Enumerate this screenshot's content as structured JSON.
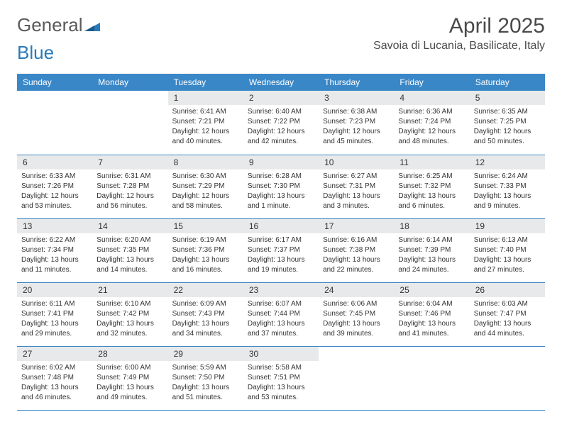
{
  "logo": {
    "text1": "General",
    "text2": "Blue"
  },
  "header": {
    "month_title": "April 2025",
    "location": "Savoia di Lucania, Basilicate, Italy"
  },
  "colors": {
    "header_bg": "#3a87c7",
    "day_num_bg": "#e8e9ea",
    "border": "#3a87c7",
    "text": "#333333",
    "logo_gray": "#5a5a5a",
    "logo_blue": "#2a7ab8"
  },
  "day_names": [
    "Sunday",
    "Monday",
    "Tuesday",
    "Wednesday",
    "Thursday",
    "Friday",
    "Saturday"
  ],
  "weeks": [
    [
      null,
      null,
      {
        "num": "1",
        "sunrise": "Sunrise: 6:41 AM",
        "sunset": "Sunset: 7:21 PM",
        "daylight": "Daylight: 12 hours and 40 minutes."
      },
      {
        "num": "2",
        "sunrise": "Sunrise: 6:40 AM",
        "sunset": "Sunset: 7:22 PM",
        "daylight": "Daylight: 12 hours and 42 minutes."
      },
      {
        "num": "3",
        "sunrise": "Sunrise: 6:38 AM",
        "sunset": "Sunset: 7:23 PM",
        "daylight": "Daylight: 12 hours and 45 minutes."
      },
      {
        "num": "4",
        "sunrise": "Sunrise: 6:36 AM",
        "sunset": "Sunset: 7:24 PM",
        "daylight": "Daylight: 12 hours and 48 minutes."
      },
      {
        "num": "5",
        "sunrise": "Sunrise: 6:35 AM",
        "sunset": "Sunset: 7:25 PM",
        "daylight": "Daylight: 12 hours and 50 minutes."
      }
    ],
    [
      {
        "num": "6",
        "sunrise": "Sunrise: 6:33 AM",
        "sunset": "Sunset: 7:26 PM",
        "daylight": "Daylight: 12 hours and 53 minutes."
      },
      {
        "num": "7",
        "sunrise": "Sunrise: 6:31 AM",
        "sunset": "Sunset: 7:28 PM",
        "daylight": "Daylight: 12 hours and 56 minutes."
      },
      {
        "num": "8",
        "sunrise": "Sunrise: 6:30 AM",
        "sunset": "Sunset: 7:29 PM",
        "daylight": "Daylight: 12 hours and 58 minutes."
      },
      {
        "num": "9",
        "sunrise": "Sunrise: 6:28 AM",
        "sunset": "Sunset: 7:30 PM",
        "daylight": "Daylight: 13 hours and 1 minute."
      },
      {
        "num": "10",
        "sunrise": "Sunrise: 6:27 AM",
        "sunset": "Sunset: 7:31 PM",
        "daylight": "Daylight: 13 hours and 3 minutes."
      },
      {
        "num": "11",
        "sunrise": "Sunrise: 6:25 AM",
        "sunset": "Sunset: 7:32 PM",
        "daylight": "Daylight: 13 hours and 6 minutes."
      },
      {
        "num": "12",
        "sunrise": "Sunrise: 6:24 AM",
        "sunset": "Sunset: 7:33 PM",
        "daylight": "Daylight: 13 hours and 9 minutes."
      }
    ],
    [
      {
        "num": "13",
        "sunrise": "Sunrise: 6:22 AM",
        "sunset": "Sunset: 7:34 PM",
        "daylight": "Daylight: 13 hours and 11 minutes."
      },
      {
        "num": "14",
        "sunrise": "Sunrise: 6:20 AM",
        "sunset": "Sunset: 7:35 PM",
        "daylight": "Daylight: 13 hours and 14 minutes."
      },
      {
        "num": "15",
        "sunrise": "Sunrise: 6:19 AM",
        "sunset": "Sunset: 7:36 PM",
        "daylight": "Daylight: 13 hours and 16 minutes."
      },
      {
        "num": "16",
        "sunrise": "Sunrise: 6:17 AM",
        "sunset": "Sunset: 7:37 PM",
        "daylight": "Daylight: 13 hours and 19 minutes."
      },
      {
        "num": "17",
        "sunrise": "Sunrise: 6:16 AM",
        "sunset": "Sunset: 7:38 PM",
        "daylight": "Daylight: 13 hours and 22 minutes."
      },
      {
        "num": "18",
        "sunrise": "Sunrise: 6:14 AM",
        "sunset": "Sunset: 7:39 PM",
        "daylight": "Daylight: 13 hours and 24 minutes."
      },
      {
        "num": "19",
        "sunrise": "Sunrise: 6:13 AM",
        "sunset": "Sunset: 7:40 PM",
        "daylight": "Daylight: 13 hours and 27 minutes."
      }
    ],
    [
      {
        "num": "20",
        "sunrise": "Sunrise: 6:11 AM",
        "sunset": "Sunset: 7:41 PM",
        "daylight": "Daylight: 13 hours and 29 minutes."
      },
      {
        "num": "21",
        "sunrise": "Sunrise: 6:10 AM",
        "sunset": "Sunset: 7:42 PM",
        "daylight": "Daylight: 13 hours and 32 minutes."
      },
      {
        "num": "22",
        "sunrise": "Sunrise: 6:09 AM",
        "sunset": "Sunset: 7:43 PM",
        "daylight": "Daylight: 13 hours and 34 minutes."
      },
      {
        "num": "23",
        "sunrise": "Sunrise: 6:07 AM",
        "sunset": "Sunset: 7:44 PM",
        "daylight": "Daylight: 13 hours and 37 minutes."
      },
      {
        "num": "24",
        "sunrise": "Sunrise: 6:06 AM",
        "sunset": "Sunset: 7:45 PM",
        "daylight": "Daylight: 13 hours and 39 minutes."
      },
      {
        "num": "25",
        "sunrise": "Sunrise: 6:04 AM",
        "sunset": "Sunset: 7:46 PM",
        "daylight": "Daylight: 13 hours and 41 minutes."
      },
      {
        "num": "26",
        "sunrise": "Sunrise: 6:03 AM",
        "sunset": "Sunset: 7:47 PM",
        "daylight": "Daylight: 13 hours and 44 minutes."
      }
    ],
    [
      {
        "num": "27",
        "sunrise": "Sunrise: 6:02 AM",
        "sunset": "Sunset: 7:48 PM",
        "daylight": "Daylight: 13 hours and 46 minutes."
      },
      {
        "num": "28",
        "sunrise": "Sunrise: 6:00 AM",
        "sunset": "Sunset: 7:49 PM",
        "daylight": "Daylight: 13 hours and 49 minutes."
      },
      {
        "num": "29",
        "sunrise": "Sunrise: 5:59 AM",
        "sunset": "Sunset: 7:50 PM",
        "daylight": "Daylight: 13 hours and 51 minutes."
      },
      {
        "num": "30",
        "sunrise": "Sunrise: 5:58 AM",
        "sunset": "Sunset: 7:51 PM",
        "daylight": "Daylight: 13 hours and 53 minutes."
      },
      null,
      null,
      null
    ]
  ]
}
